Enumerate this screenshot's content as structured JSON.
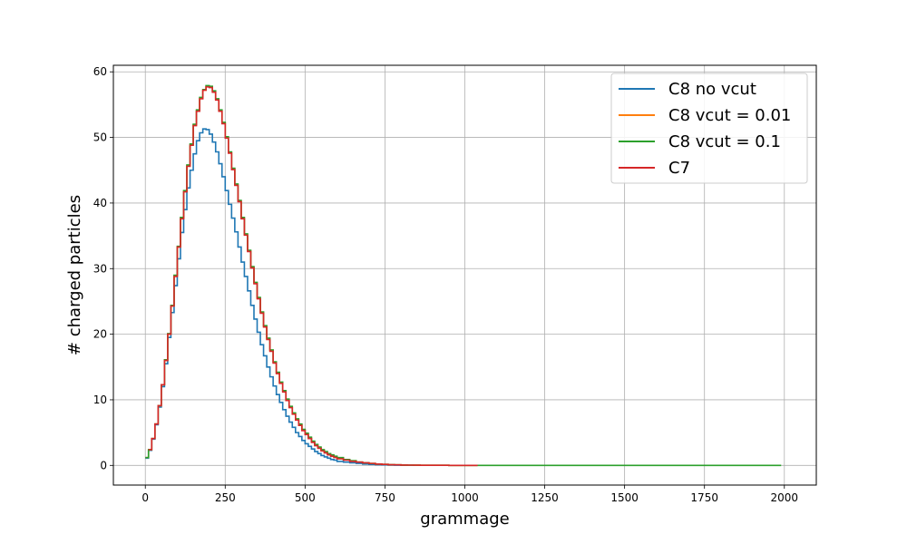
{
  "chart_data": {
    "type": "line",
    "drawstyle": "steps",
    "xlabel": "grammage",
    "ylabel": "# charged particles",
    "xlim": [
      -100,
      2100
    ],
    "ylim": [
      -3,
      61
    ],
    "xticks": [
      0,
      250,
      500,
      750,
      1000,
      1250,
      1500,
      1750,
      2000
    ],
    "yticks": [
      0,
      10,
      20,
      30,
      40,
      50,
      60
    ],
    "grid": true,
    "legend_position": "top-right",
    "series": [
      {
        "name": "C8 no vcut",
        "color": "#1f77b4",
        "x": [
          0,
          10,
          20,
          30,
          40,
          50,
          60,
          70,
          80,
          90,
          100,
          110,
          120,
          130,
          140,
          150,
          160,
          170,
          180,
          190,
          200,
          210,
          220,
          230,
          240,
          250,
          260,
          270,
          280,
          290,
          300,
          310,
          320,
          330,
          340,
          350,
          360,
          370,
          380,
          390,
          400,
          410,
          420,
          430,
          440,
          450,
          460,
          470,
          480,
          490,
          500,
          510,
          520,
          530,
          540,
          550,
          560,
          570,
          580,
          590,
          600,
          620,
          640,
          660,
          680,
          700,
          720,
          740,
          760,
          780,
          800,
          820,
          840
        ],
        "y": [
          1.1,
          2.3,
          4.0,
          6.2,
          8.9,
          12.0,
          15.5,
          19.5,
          23.3,
          27.4,
          31.5,
          35.5,
          39.0,
          42.3,
          45.0,
          47.5,
          49.5,
          50.7,
          51.3,
          51.2,
          50.5,
          49.3,
          47.8,
          46.0,
          44.0,
          41.9,
          39.8,
          37.7,
          35.6,
          33.3,
          31.0,
          28.8,
          26.6,
          24.4,
          22.3,
          20.3,
          18.4,
          16.7,
          15.0,
          13.5,
          12.1,
          10.8,
          9.6,
          8.5,
          7.5,
          6.6,
          5.8,
          5.0,
          4.4,
          3.8,
          3.3,
          2.9,
          2.5,
          2.1,
          1.8,
          1.5,
          1.3,
          1.1,
          0.9,
          0.8,
          0.6,
          0.5,
          0.4,
          0.3,
          0.2,
          0.15,
          0.1,
          0.08,
          0.05,
          0.03,
          0.02,
          0.01,
          0
        ]
      },
      {
        "name": "C8 vcut = 0.01",
        "color": "#ff7f0e",
        "x": [
          0,
          10,
          20,
          30,
          40,
          50,
          60,
          70,
          80,
          90,
          100,
          110,
          120,
          130,
          140,
          150,
          160,
          170,
          180,
          190,
          200,
          210,
          220,
          230,
          240,
          250,
          260,
          270,
          280,
          290,
          300,
          310,
          320,
          330,
          340,
          350,
          360,
          370,
          380,
          390,
          400,
          410,
          420,
          430,
          440,
          450,
          460,
          470,
          480,
          490,
          500,
          510,
          520,
          530,
          540,
          550,
          560,
          570,
          580,
          590,
          600,
          620,
          640,
          660,
          680,
          700,
          720,
          740,
          760,
          780,
          800,
          820,
          840,
          860,
          880,
          900,
          950,
          1000,
          1040
        ],
        "y": [
          1.2,
          2.4,
          4.1,
          6.3,
          9.1,
          12.3,
          16.0,
          20.0,
          24.3,
          28.9,
          33.3,
          37.7,
          41.8,
          45.7,
          48.9,
          51.9,
          54.1,
          56.0,
          57.2,
          57.8,
          57.7,
          57.0,
          55.8,
          54.1,
          52.2,
          50.0,
          47.7,
          45.2,
          42.8,
          40.3,
          37.7,
          35.2,
          32.7,
          30.2,
          27.8,
          25.5,
          23.3,
          21.2,
          19.3,
          17.5,
          15.7,
          14.1,
          12.6,
          11.3,
          10.0,
          8.9,
          7.9,
          7.0,
          6.2,
          5.4,
          4.8,
          4.2,
          3.6,
          3.1,
          2.7,
          2.3,
          2.0,
          1.7,
          1.5,
          1.3,
          1.1,
          0.9,
          0.7,
          0.5,
          0.4,
          0.3,
          0.2,
          0.15,
          0.1,
          0.08,
          0.05,
          0.04,
          0.03,
          0.02,
          0.01,
          0.01,
          0,
          0,
          0
        ]
      },
      {
        "name": "C8 vcut = 0.1",
        "color": "#2ca02c",
        "x": [
          0,
          10,
          20,
          30,
          40,
          50,
          60,
          70,
          80,
          90,
          100,
          110,
          120,
          130,
          140,
          150,
          160,
          170,
          180,
          190,
          200,
          210,
          220,
          230,
          240,
          250,
          260,
          270,
          280,
          290,
          300,
          310,
          320,
          330,
          340,
          350,
          360,
          370,
          380,
          390,
          400,
          410,
          420,
          430,
          440,
          450,
          460,
          470,
          480,
          490,
          500,
          510,
          520,
          530,
          540,
          550,
          560,
          570,
          580,
          590,
          600,
          620,
          640,
          660,
          680,
          700,
          720,
          740,
          760,
          780,
          800,
          820,
          840,
          860,
          880,
          900,
          950,
          1000,
          1050,
          1100,
          1200,
          1300,
          1400,
          1500,
          1600,
          1700,
          1800,
          1900,
          1990
        ],
        "y": [
          1.2,
          2.4,
          4.1,
          6.3,
          9.1,
          12.3,
          16.1,
          20.1,
          24.4,
          29.0,
          33.4,
          37.8,
          41.9,
          45.8,
          49.0,
          52.0,
          54.2,
          56.1,
          57.3,
          57.9,
          57.8,
          57.1,
          55.9,
          54.2,
          52.3,
          50.1,
          47.8,
          45.3,
          42.9,
          40.4,
          37.8,
          35.3,
          32.8,
          30.3,
          27.9,
          25.6,
          23.4,
          21.3,
          19.4,
          17.6,
          15.8,
          14.2,
          12.7,
          11.4,
          10.1,
          9.0,
          8.0,
          7.1,
          6.3,
          5.5,
          4.9,
          4.3,
          3.7,
          3.2,
          2.8,
          2.4,
          2.1,
          1.8,
          1.6,
          1.4,
          1.2,
          0.9,
          0.7,
          0.5,
          0.4,
          0.3,
          0.2,
          0.15,
          0.1,
          0.08,
          0.05,
          0.04,
          0.03,
          0.02,
          0.01,
          0.01,
          0,
          0,
          0,
          0,
          0,
          0,
          0,
          0,
          0,
          0,
          0,
          0,
          0
        ]
      },
      {
        "name": "C7",
        "color": "#d62728",
        "x": [
          10,
          20,
          30,
          40,
          50,
          60,
          70,
          80,
          90,
          100,
          110,
          120,
          130,
          140,
          150,
          160,
          170,
          180,
          190,
          200,
          210,
          220,
          230,
          240,
          250,
          260,
          270,
          280,
          290,
          300,
          310,
          320,
          330,
          340,
          350,
          360,
          370,
          380,
          390,
          400,
          410,
          420,
          430,
          440,
          450,
          460,
          470,
          480,
          490,
          500,
          510,
          520,
          530,
          540,
          550,
          560,
          570,
          580,
          590,
          600,
          620,
          640,
          660,
          680,
          700,
          720,
          740,
          760,
          780,
          800,
          820,
          840,
          860,
          880,
          900,
          950,
          1000,
          1040
        ],
        "y": [
          2.4,
          4.1,
          6.3,
          9.1,
          12.3,
          16.0,
          20.0,
          24.3,
          28.8,
          33.3,
          37.6,
          41.7,
          45.6,
          48.8,
          51.8,
          54.0,
          55.9,
          57.2,
          57.7,
          57.6,
          56.9,
          55.7,
          54.0,
          52.1,
          49.9,
          47.6,
          45.1,
          42.7,
          40.2,
          37.6,
          35.1,
          32.6,
          30.1,
          27.7,
          25.4,
          23.2,
          21.1,
          19.2,
          17.4,
          15.6,
          14.0,
          12.5,
          11.2,
          9.9,
          8.8,
          7.8,
          6.9,
          6.1,
          5.3,
          4.7,
          4.1,
          3.5,
          3.0,
          2.6,
          2.2,
          1.9,
          1.6,
          1.4,
          1.2,
          1.0,
          0.8,
          0.6,
          0.5,
          0.4,
          0.3,
          0.2,
          0.15,
          0.1,
          0.08,
          0.05,
          0.04,
          0.03,
          0.02,
          0.01,
          0.01,
          0,
          0,
          0
        ]
      }
    ]
  }
}
